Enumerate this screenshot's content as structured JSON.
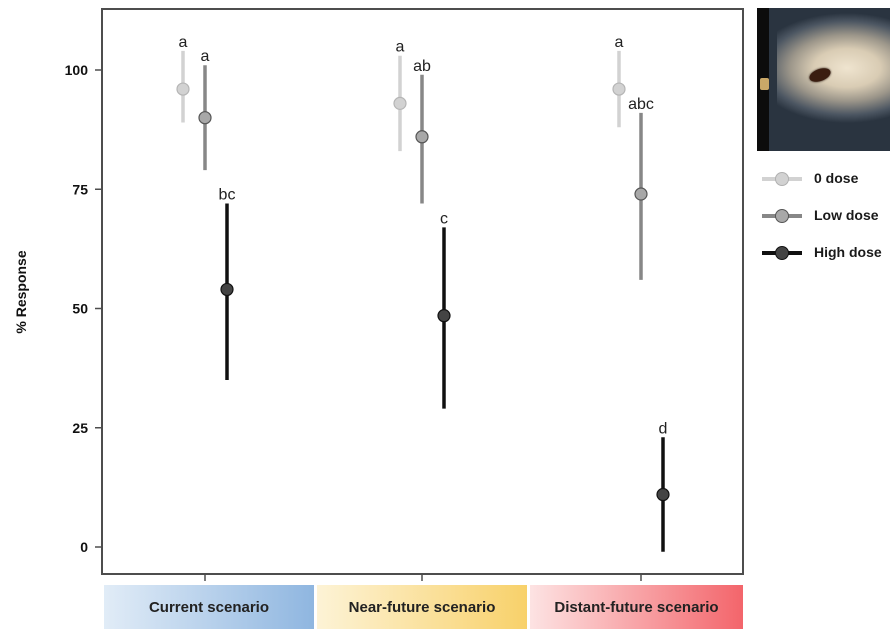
{
  "chart_data": {
    "type": "scatter",
    "ylabel": "% Response",
    "ylim": [
      -5,
      112
    ],
    "yticks": [
      "0",
      "25",
      "50",
      "75",
      "100"
    ],
    "categories": [
      "Current scenario",
      "Near-future scenario",
      "Distant-future scenario"
    ],
    "category_colors": [
      [
        "#e1ecf7",
        "#8fb6e0"
      ],
      [
        "#fdf3d6",
        "#f8d16a"
      ],
      [
        "#fde3e3",
        "#f3656b"
      ]
    ],
    "series": [
      {
        "name": "0 dose",
        "color": "#d2d2d2",
        "values": [
          96,
          93,
          96
        ],
        "lower": [
          89,
          83,
          88
        ],
        "upper": [
          104,
          103,
          104
        ],
        "letters": [
          "a",
          "a",
          "a"
        ]
      },
      {
        "name": "Low dose",
        "color": "#878787",
        "values": [
          90,
          86,
          74
        ],
        "lower": [
          79,
          72,
          56
        ],
        "upper": [
          101,
          99,
          91
        ],
        "letters": [
          "a",
          "ab",
          "abc"
        ]
      },
      {
        "name": "High dose",
        "color": "#101010",
        "values": [
          54,
          48.5,
          11
        ],
        "lower": [
          35,
          29,
          -1
        ],
        "upper": [
          72,
          67,
          23
        ],
        "letters": [
          "bc",
          "c",
          "d"
        ]
      }
    ],
    "grid": false,
    "legend_position": "right"
  }
}
